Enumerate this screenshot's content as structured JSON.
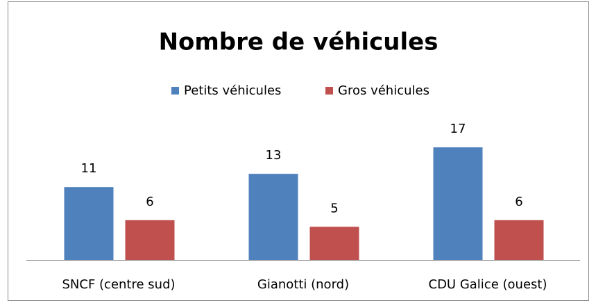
{
  "chart_data": {
    "type": "bar",
    "title": "Nombre de véhicules",
    "categories": [
      "SNCF (centre sud)",
      "Gianotti (nord)",
      "CDU Galice (ouest)"
    ],
    "series": [
      {
        "name": "Petits véhicules",
        "color": "#4f81bd",
        "values": [
          11,
          13,
          17
        ]
      },
      {
        "name": "Gros véhicules",
        "color": "#c0504d",
        "values": [
          6,
          5,
          6
        ]
      }
    ],
    "legend": "top"
  }
}
